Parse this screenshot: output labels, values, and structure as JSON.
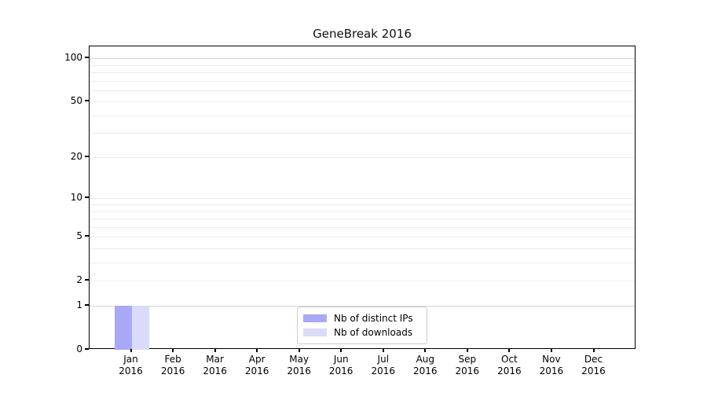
{
  "title": "GeneBreak 2016",
  "colors": {
    "bar_distinct_ips": "#a8a8f6",
    "bar_downloads": "#dadaf9",
    "grid_minor": "#ececec",
    "grid_major": "#d5d5d5",
    "axis": "#000000",
    "legend_border": "#cbcbcb",
    "background": "#ffffff"
  },
  "legend": {
    "position": "lower center",
    "items": [
      {
        "label": "Nb of distinct IPs"
      },
      {
        "label": "Nb of downloads"
      }
    ]
  },
  "chart_data": {
    "type": "bar",
    "title": "GeneBreak 2016",
    "categories": [
      "Jan 2016",
      "Feb 2016",
      "Mar 2016",
      "Apr 2016",
      "May 2016",
      "Jun 2016",
      "Jul 2016",
      "Aug 2016",
      "Sep 2016",
      "Oct 2016",
      "Nov 2016",
      "Dec 2016"
    ],
    "series": [
      {
        "name": "Nb of distinct IPs",
        "color": "#a8a8f6",
        "values": [
          1,
          0,
          0,
          0,
          0,
          0,
          0,
          0,
          0,
          0,
          0,
          0
        ]
      },
      {
        "name": "Nb of downloads",
        "color": "#dadaf9",
        "values": [
          1,
          0,
          0,
          0,
          0,
          0,
          0,
          0,
          0,
          0,
          0,
          0
        ]
      }
    ],
    "xlabel": "",
    "ylabel": "",
    "y_scale": "log1p",
    "ylim": [
      0,
      121
    ],
    "y_ticks": [
      0,
      1,
      2,
      5,
      10,
      20,
      50,
      100
    ],
    "y_gridlines_major": [
      1,
      100
    ],
    "y_gridlines_minor": [
      2,
      3,
      4,
      5,
      6,
      7,
      8,
      9,
      10,
      20,
      30,
      40,
      50,
      60,
      70,
      80,
      90
    ],
    "grid": "horizontal",
    "legend_position": "lower center"
  }
}
